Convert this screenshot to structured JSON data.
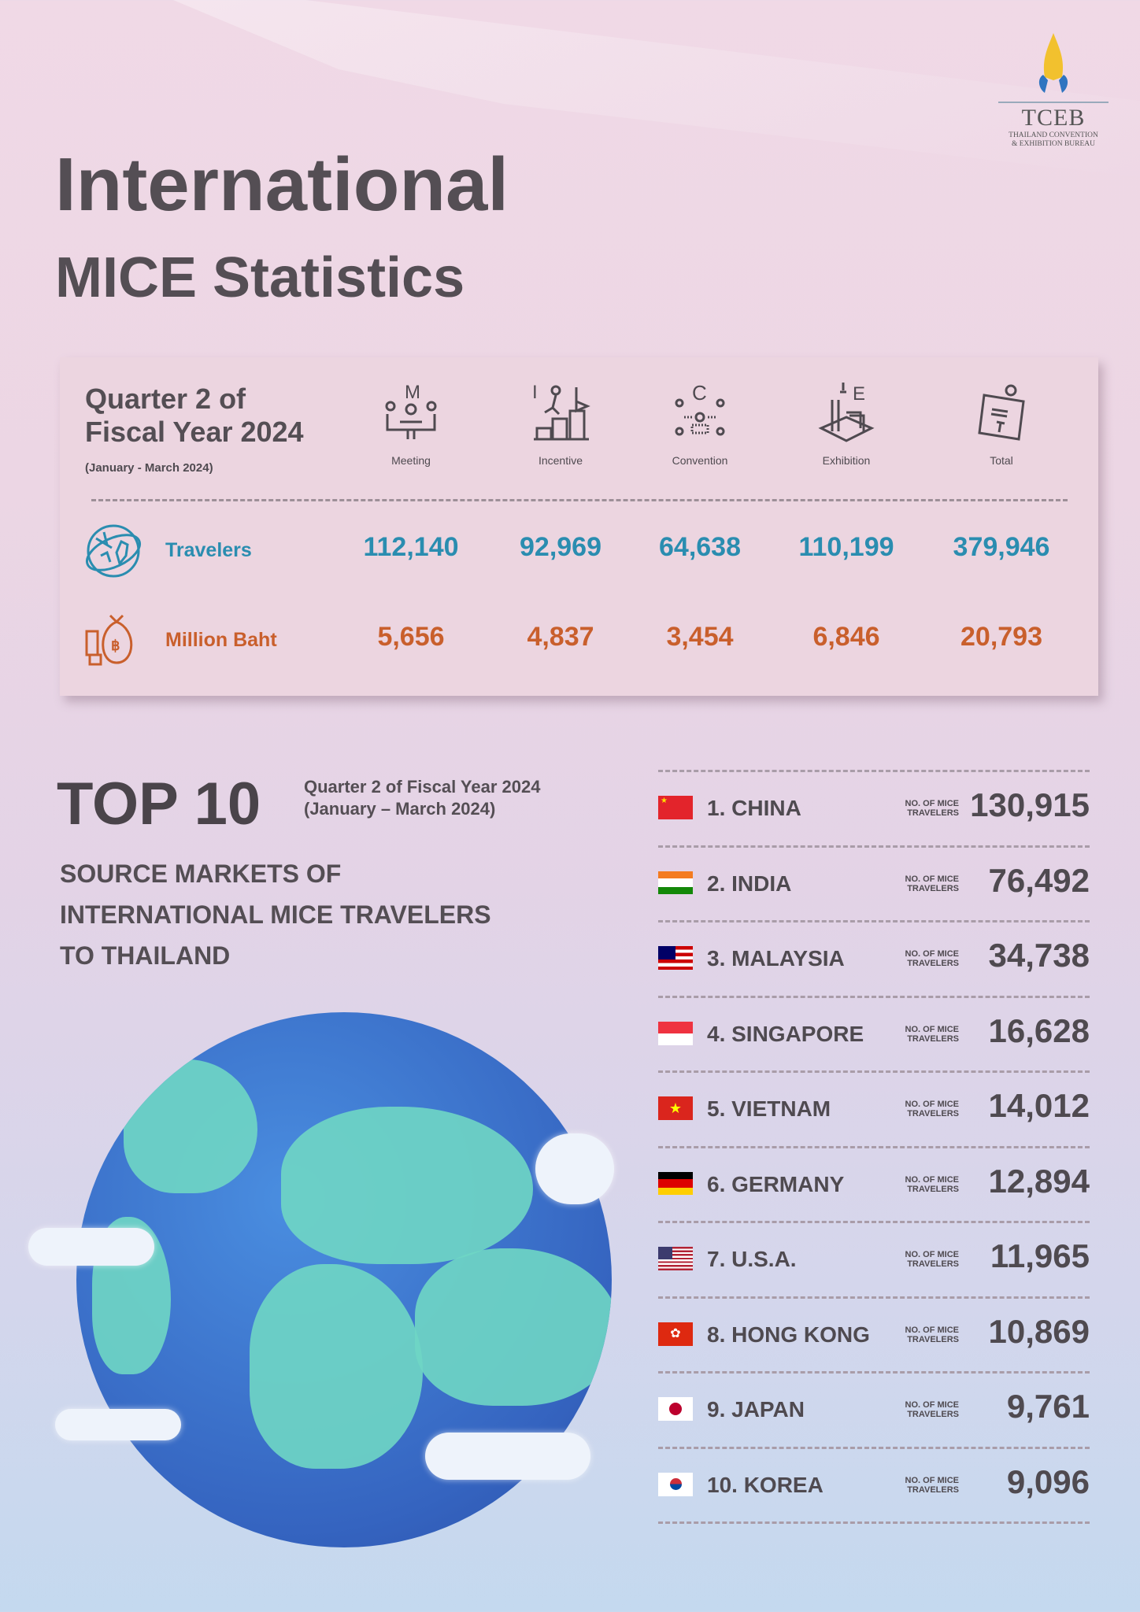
{
  "logo": {
    "name": "TCEB",
    "subtitle_line1": "THAILAND CONVENTION",
    "subtitle_line2": "& EXHIBITION BUREAU"
  },
  "title": {
    "line1": "International",
    "line2": "MICE Statistics"
  },
  "summary": {
    "period_line1": "Quarter 2 of",
    "period_line2": "Fiscal Year 2024",
    "period_range": "(January - March 2024)",
    "columns": [
      {
        "letter": "M",
        "label": "Meeting",
        "icon": "meeting-icon"
      },
      {
        "letter": "I",
        "label": "Incentive",
        "icon": "incentive-icon"
      },
      {
        "letter": "C",
        "label": "Convention",
        "icon": "convention-icon"
      },
      {
        "letter": "E",
        "label": "Exhibition",
        "icon": "exhibition-icon"
      },
      {
        "letter": "",
        "label": "Total",
        "icon": "total-icon"
      }
    ],
    "rows": [
      {
        "label": "Travelers",
        "icon": "globe-plane-icon",
        "color": "#2a8db0",
        "values": [
          "112,140",
          "92,969",
          "64,638",
          "110,199",
          "379,946"
        ]
      },
      {
        "label": "Million Baht",
        "icon": "money-bag-icon",
        "color": "#c95f2c",
        "values": [
          "5,656",
          "4,837",
          "3,454",
          "6,846",
          "20,793"
        ]
      }
    ]
  },
  "top10": {
    "heading": "TOP 10",
    "period_line1": "Quarter 2 of Fiscal Year 2024",
    "period_line2": "(January – March 2024)",
    "desc_line1": "SOURCE MARKETS OF",
    "desc_line2": "INTERNATIONAL MICE  TRAVELERS",
    "desc_line3": "TO THAILAND",
    "count_label_line1": "NO. OF MICE",
    "count_label_line2": "TRAVELERS",
    "items": [
      {
        "rank": "1.  CHINA",
        "value": "130,915",
        "flag": "china"
      },
      {
        "rank": "2. INDIA",
        "value": "76,492",
        "flag": "india"
      },
      {
        "rank": "3. MALAYSIA",
        "value": "34,738",
        "flag": "malaysia"
      },
      {
        "rank": "4. SINGAPORE",
        "value": "16,628",
        "flag": "singapore"
      },
      {
        "rank": "5. VIETNAM",
        "value": "14,012",
        "flag": "vietnam"
      },
      {
        "rank": "6. GERMANY",
        "value": "12,894",
        "flag": "germany"
      },
      {
        "rank": "7. U.S.A.",
        "value": "11,965",
        "flag": "usa"
      },
      {
        "rank": "8. HONG KONG",
        "value": "10,869",
        "flag": "hong-kong"
      },
      {
        "rank": "9. JAPAN",
        "value": "9,761",
        "flag": "japan"
      },
      {
        "rank": "10. KOREA",
        "value": "9,096",
        "flag": "korea"
      }
    ]
  }
}
